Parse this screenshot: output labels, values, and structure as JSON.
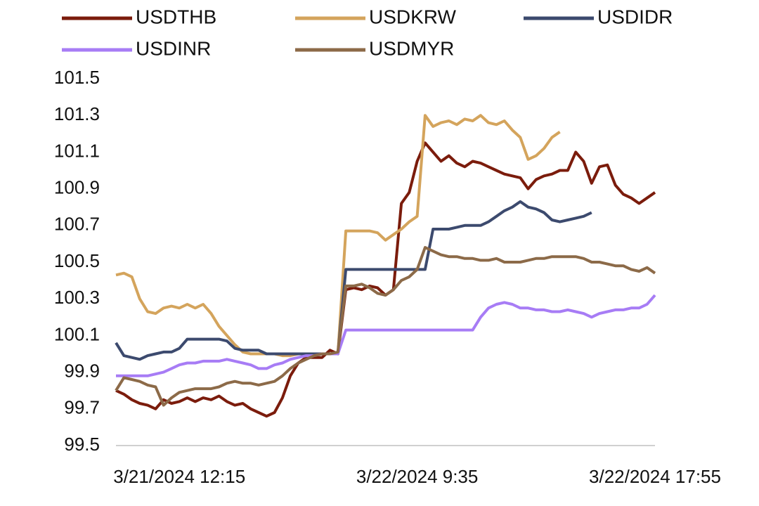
{
  "chart_data": {
    "type": "line",
    "categories": [
      null,
      null,
      null,
      null,
      null,
      null,
      null,
      null,
      "3/21/2024 12:15",
      null,
      null,
      null,
      null,
      null,
      null,
      null,
      null,
      null,
      null,
      null,
      null,
      null,
      null,
      null,
      null,
      null,
      null,
      null,
      null,
      null,
      null,
      null,
      null,
      null,
      null,
      null,
      null,
      null,
      "3/22/2024 9:35",
      null,
      null,
      null,
      null,
      null,
      null,
      null,
      null,
      null,
      null,
      null,
      null,
      null,
      null,
      null,
      null,
      null,
      null,
      null,
      null,
      null,
      null,
      null,
      null,
      null,
      null,
      null,
      null,
      null,
      "3/22/2024 17:55"
    ],
    "series": [
      {
        "name": "USDTHB",
        "color": "#7b1c0c",
        "values": [
          99.8,
          99.78,
          99.75,
          99.73,
          99.72,
          99.7,
          99.75,
          99.73,
          99.74,
          99.76,
          99.74,
          99.76,
          99.75,
          99.77,
          99.74,
          99.72,
          99.73,
          99.7,
          99.68,
          99.66,
          99.68,
          99.76,
          99.88,
          99.95,
          99.98,
          99.98,
          99.98,
          100.02,
          100.0,
          100.35,
          100.36,
          100.35,
          100.37,
          100.36,
          100.32,
          100.35,
          100.82,
          100.88,
          101.05,
          101.15,
          101.1,
          101.05,
          101.08,
          101.04,
          101.02,
          101.05,
          101.04,
          101.02,
          101.0,
          100.98,
          100.97,
          100.96,
          100.9,
          100.95,
          100.97,
          100.98,
          101.0,
          101.0,
          101.1,
          101.05,
          100.93,
          101.02,
          101.03,
          100.92,
          100.87,
          100.85,
          100.82,
          100.85,
          100.88
        ]
      },
      {
        "name": "USDKRW",
        "color": "#d4a45c",
        "values": [
          100.43,
          100.44,
          100.42,
          100.3,
          100.23,
          100.22,
          100.25,
          100.26,
          100.25,
          100.27,
          100.25,
          100.27,
          100.22,
          100.15,
          100.1,
          100.05,
          100.01,
          100.0,
          100.0,
          100.0,
          100.0,
          99.99,
          99.99,
          100.0,
          100.0,
          100.0,
          100.0,
          100.0,
          100.0,
          100.67,
          100.67,
          100.67,
          100.67,
          100.66,
          100.62,
          100.65,
          100.68,
          100.72,
          100.75,
          101.3,
          101.24,
          101.26,
          101.27,
          101.25,
          101.28,
          101.27,
          101.3,
          101.26,
          101.25,
          101.27,
          101.22,
          101.18,
          101.06,
          101.08,
          101.12,
          101.18,
          101.21,
          null,
          null,
          null,
          null,
          null,
          null,
          null,
          null,
          null,
          null,
          null,
          null
        ]
      },
      {
        "name": "USDIDR",
        "color": "#3c4a6e",
        "values": [
          100.06,
          99.99,
          99.98,
          99.97,
          99.99,
          100.0,
          100.01,
          100.01,
          100.03,
          100.08,
          100.08,
          100.08,
          100.08,
          100.08,
          100.07,
          100.03,
          100.02,
          100.02,
          100.02,
          100.0,
          100.0,
          100.0,
          100.0,
          100.0,
          100.0,
          100.0,
          100.0,
          100.0,
          100.0,
          100.46,
          100.46,
          100.46,
          100.46,
          100.46,
          100.46,
          100.46,
          100.46,
          100.46,
          100.46,
          100.46,
          100.68,
          100.68,
          100.68,
          100.69,
          100.7,
          100.7,
          100.7,
          100.72,
          100.75,
          100.78,
          100.8,
          100.83,
          100.8,
          100.79,
          100.77,
          100.73,
          100.72,
          100.73,
          100.74,
          100.75,
          100.77,
          null,
          null,
          null,
          null,
          null,
          null,
          null,
          null
        ]
      },
      {
        "name": "USDINR",
        "color": "#a77cf5",
        "values": [
          99.88,
          99.88,
          99.88,
          99.88,
          99.88,
          99.89,
          99.9,
          99.92,
          99.94,
          99.95,
          99.95,
          99.96,
          99.96,
          99.96,
          99.97,
          99.96,
          99.95,
          99.94,
          99.92,
          99.92,
          99.94,
          99.95,
          99.97,
          99.98,
          99.99,
          99.99,
          100.0,
          100.0,
          100.0,
          100.13,
          100.13,
          100.13,
          100.13,
          100.13,
          100.13,
          100.13,
          100.13,
          100.13,
          100.13,
          100.13,
          100.13,
          100.13,
          100.13,
          100.13,
          100.13,
          100.13,
          100.2,
          100.25,
          100.27,
          100.28,
          100.27,
          100.25,
          100.25,
          100.24,
          100.24,
          100.23,
          100.23,
          100.24,
          100.23,
          100.22,
          100.2,
          100.22,
          100.23,
          100.24,
          100.24,
          100.25,
          100.25,
          100.27,
          100.32
        ]
      },
      {
        "name": "USDMYR",
        "color": "#8c6a48",
        "values": [
          99.8,
          99.87,
          99.86,
          99.85,
          99.83,
          99.82,
          99.72,
          99.76,
          99.79,
          99.8,
          99.81,
          99.81,
          99.81,
          99.82,
          99.84,
          99.85,
          99.84,
          99.84,
          99.83,
          99.84,
          99.85,
          99.88,
          99.92,
          99.95,
          99.97,
          99.99,
          100.0,
          100.0,
          100.01,
          100.37,
          100.37,
          100.38,
          100.36,
          100.33,
          100.32,
          100.35,
          100.4,
          100.42,
          100.46,
          100.58,
          100.56,
          100.54,
          100.53,
          100.53,
          100.52,
          100.52,
          100.51,
          100.51,
          100.52,
          100.5,
          100.5,
          100.5,
          100.51,
          100.52,
          100.52,
          100.53,
          100.53,
          100.53,
          100.53,
          100.52,
          100.5,
          100.5,
          100.49,
          100.48,
          100.48,
          100.46,
          100.45,
          100.47,
          100.44
        ]
      }
    ],
    "ylim": [
      99.5,
      101.5
    ],
    "yticks": [
      99.5,
      99.7,
      99.9,
      100.1,
      100.3,
      100.5,
      100.7,
      100.9,
      101.1,
      101.3,
      101.5
    ],
    "grid": false,
    "legend": "top"
  }
}
